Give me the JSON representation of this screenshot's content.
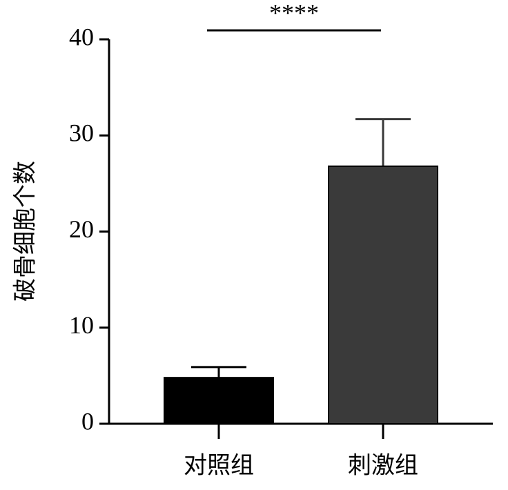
{
  "chart_data": {
    "type": "bar",
    "ylabel": "破骨细胞个数",
    "categories": [
      "对照组",
      "刺激组"
    ],
    "values": [
      4.8,
      26.8
    ],
    "errors": [
      1.1,
      4.9
    ],
    "colors": [
      "#000000",
      "#3a3a3a"
    ],
    "ylim": [
      0,
      40
    ],
    "yticks": [
      0,
      10,
      20,
      30,
      40
    ],
    "annotation": "****"
  }
}
